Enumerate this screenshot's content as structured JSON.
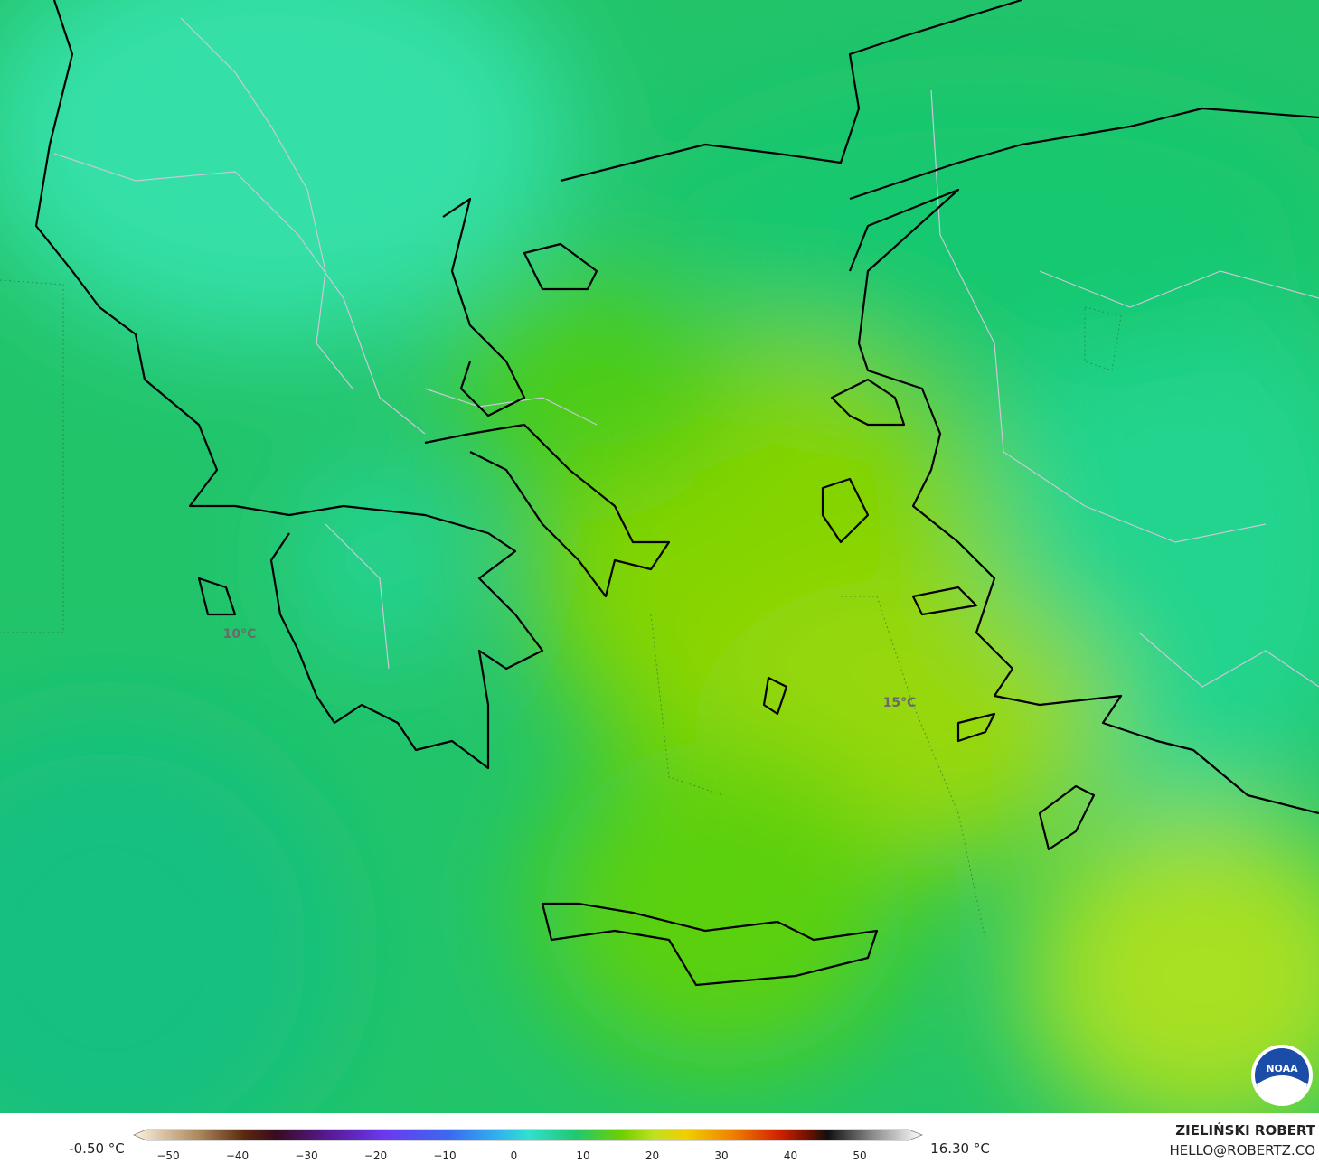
{
  "map": {
    "contour_labels": [
      "10°C",
      "15°C"
    ]
  },
  "legend": {
    "min_label": "-0.50 °C",
    "max_label": "16.30 °C",
    "ticks": [
      "−50",
      "−40",
      "−30",
      "−20",
      "−10",
      "0",
      "10",
      "20",
      "30",
      "40",
      "50"
    ]
  },
  "credit": {
    "author": "ZIELIŃSKI ROBERT",
    "contact": "HELLO@ROBERTZ.CO"
  },
  "logo": {
    "text": "NOAA"
  }
}
